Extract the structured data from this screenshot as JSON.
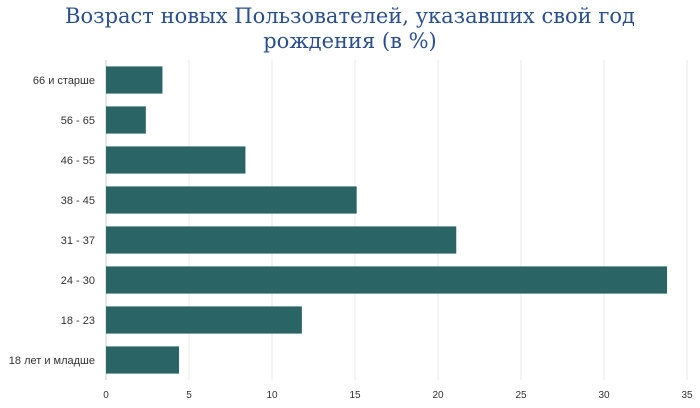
{
  "chart_data": {
    "type": "bar",
    "orientation": "horizontal",
    "title_lines": [
      "Возраст новых Пользователей, указавших свой год",
      "рождения (в %)"
    ],
    "categories": [
      "66 и старше",
      "56 - 65",
      "46 - 55",
      "38 - 45",
      "31 - 37",
      "24 - 30",
      "18 - 23",
      "18 лет и младше"
    ],
    "values": [
      3.4,
      2.4,
      8.4,
      15.1,
      21.1,
      33.8,
      11.8,
      4.4
    ],
    "xlim": [
      0,
      35
    ],
    "xticks": [
      "0",
      "5",
      "10",
      "15",
      "20",
      "25",
      "30",
      "35"
    ],
    "grid": true,
    "bar_color": "#2b6465",
    "title_color": "#2b4f8a"
  }
}
